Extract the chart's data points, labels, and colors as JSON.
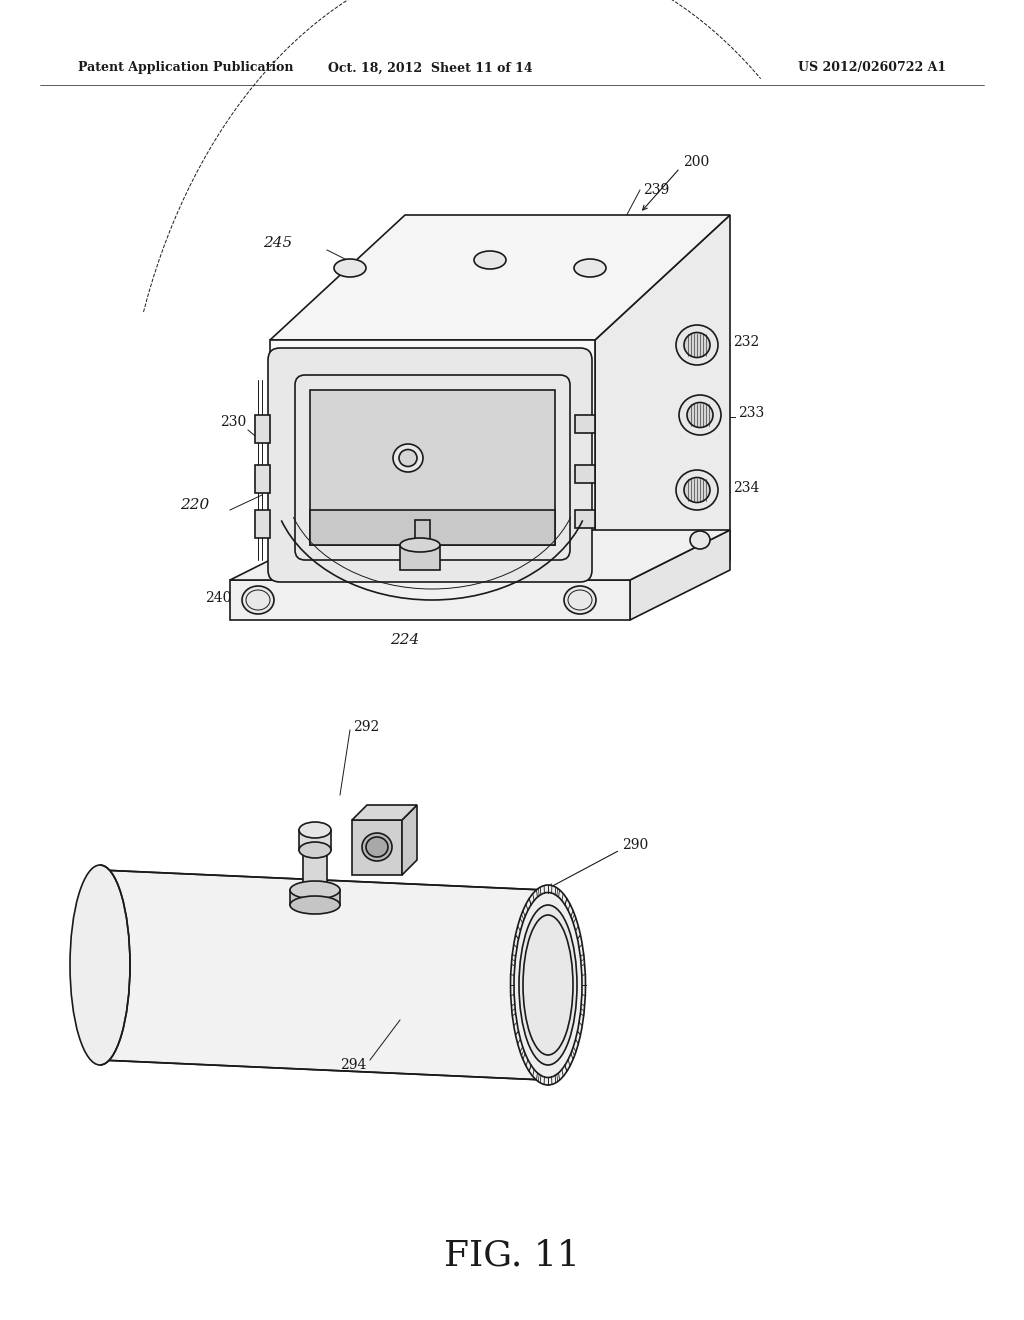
{
  "header_left": "Patent Application Publication",
  "header_mid": "Oct. 18, 2012  Sheet 11 of 14",
  "header_right": "US 2012/0260722 A1",
  "figure_label": "FIG. 11",
  "bg_color": "#ffffff",
  "line_color": "#1a1a1a",
  "lw_main": 1.2,
  "lw_thin": 0.7,
  "lw_thick": 1.6
}
